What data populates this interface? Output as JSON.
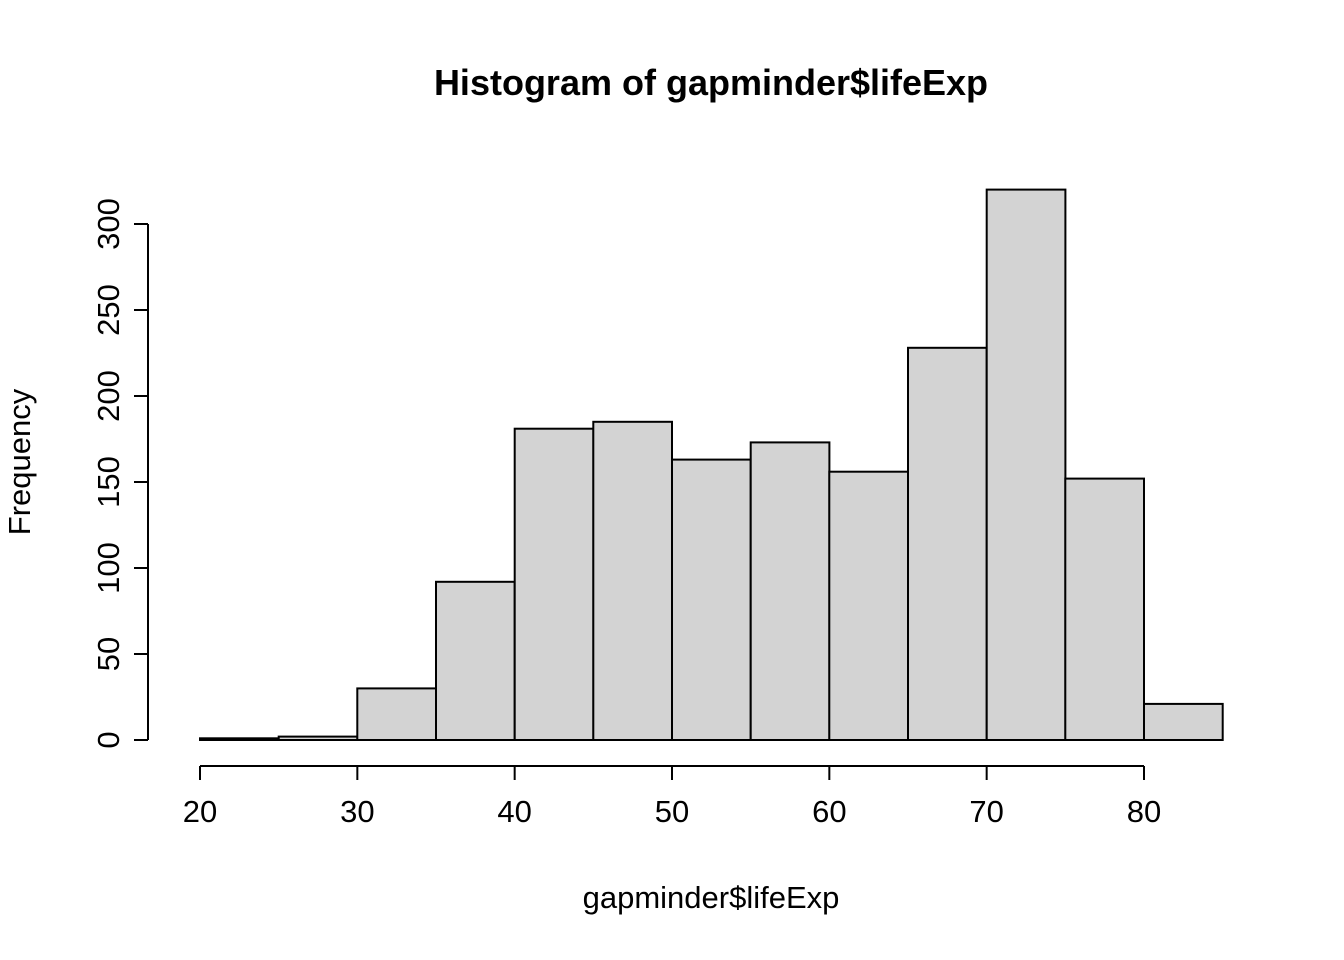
{
  "chart_data": {
    "type": "bar",
    "subtype": "histogram",
    "title": "Histogram of gapminder$lifeExp",
    "xlabel": "gapminder$lifeExp",
    "ylabel": "Frequency",
    "bin_edges": [
      20,
      25,
      30,
      35,
      40,
      45,
      50,
      55,
      60,
      65,
      70,
      75,
      80,
      85
    ],
    "values": [
      1,
      2,
      30,
      92,
      181,
      185,
      163,
      173,
      156,
      228,
      320,
      152,
      21
    ],
    "x_ticks": [
      20,
      30,
      40,
      50,
      60,
      70,
      80
    ],
    "y_ticks": [
      0,
      50,
      100,
      150,
      200,
      250,
      300
    ],
    "xlim": [
      20,
      85
    ],
    "ylim": [
      0,
      320
    ],
    "grid": false,
    "legend": false,
    "bar_fill": "#d3d3d3",
    "bar_stroke": "#000000",
    "axis_color": "#000000",
    "background": "#ffffff"
  }
}
